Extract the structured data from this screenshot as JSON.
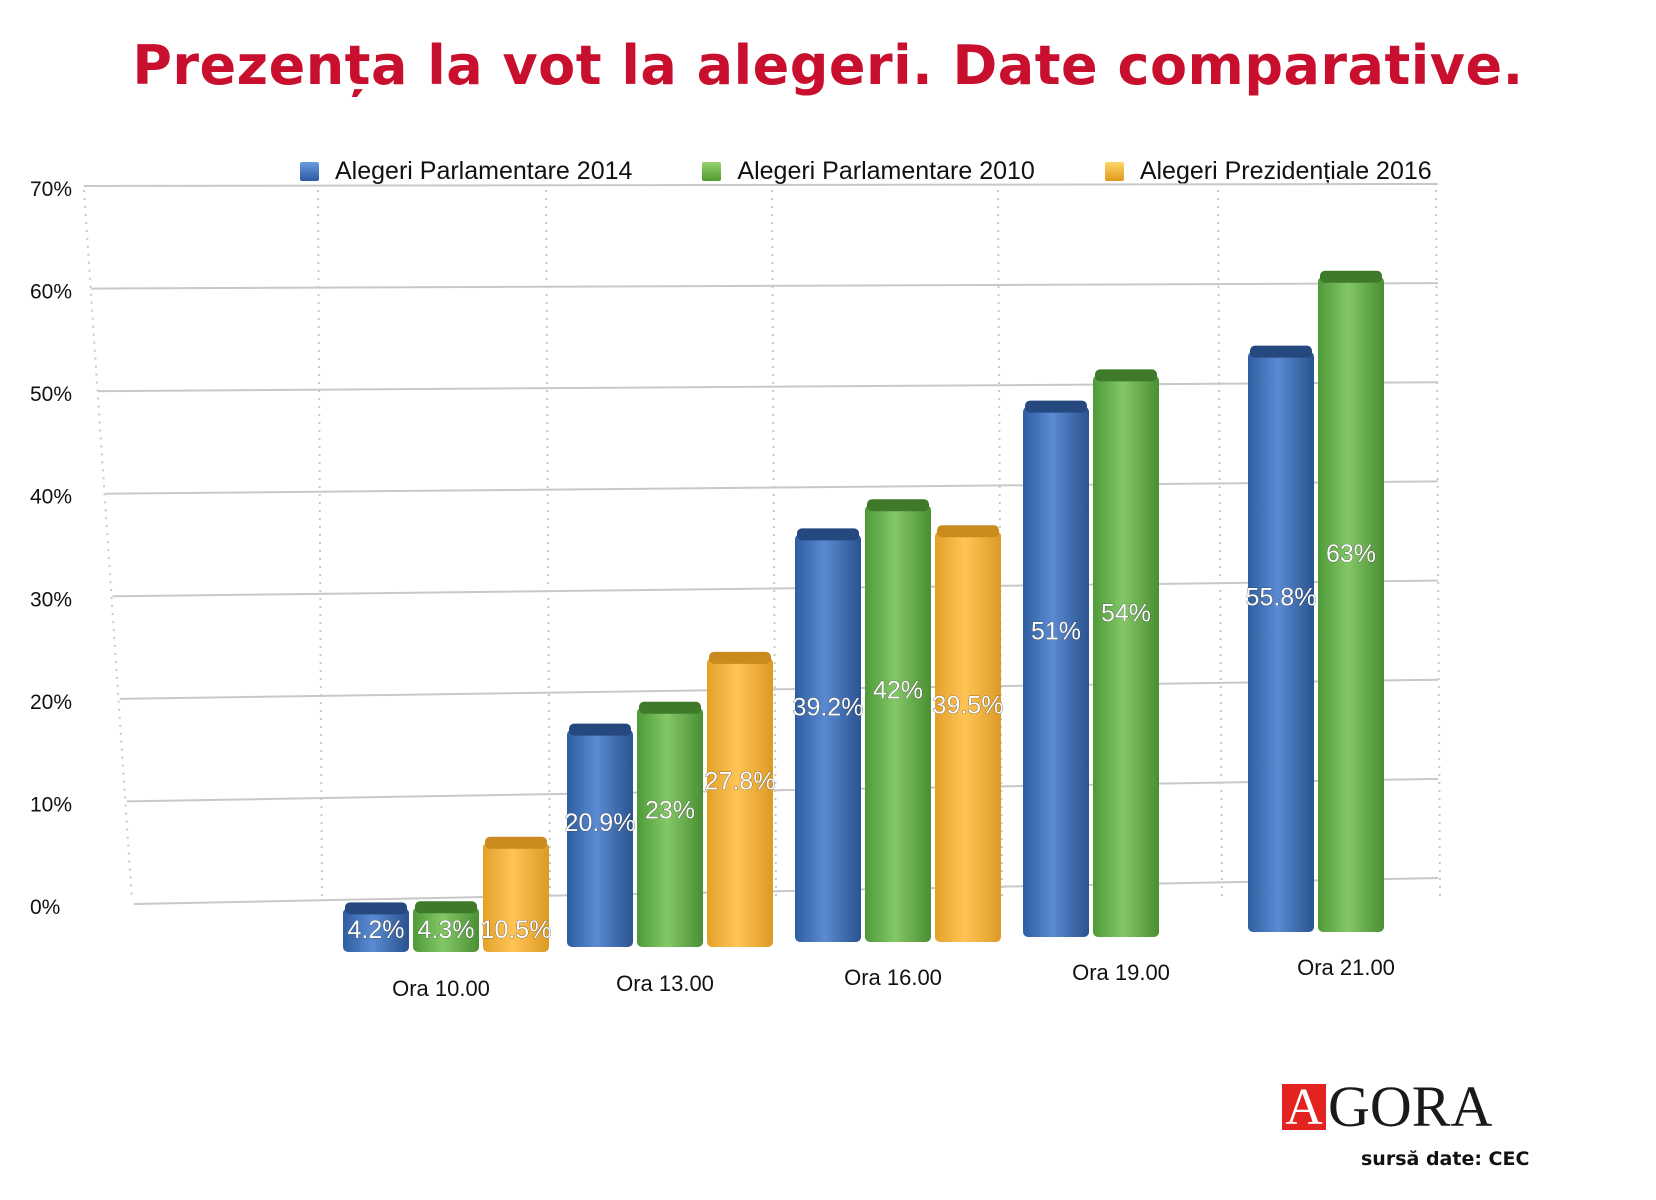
{
  "chart_data": {
    "type": "bar",
    "title": "Prezența la vot la alegeri. Date comparative.",
    "xlabel": "",
    "ylabel": "",
    "ylim": [
      0,
      70
    ],
    "yticks": [
      "0%",
      "10%",
      "20%",
      "30%",
      "40%",
      "50%",
      "60%",
      "70%"
    ],
    "grid": true,
    "legend_position": "top",
    "categories": [
      "Ora 10.00",
      "Ora 13.00",
      "Ora 16.00",
      "Ora 19.00",
      "Ora 21.00"
    ],
    "series": [
      {
        "name": "Alegeri Parlamentare 2014",
        "color": "#3f6fb8",
        "values": [
          4.2,
          20.9,
          39.2,
          51,
          55.8
        ],
        "labels": [
          "4.2%",
          "20.9%",
          "39.2%",
          "51%",
          "55.8%"
        ]
      },
      {
        "name": "Alegeri Parlamentare 2010",
        "color": "#6cb24a",
        "values": [
          4.3,
          23,
          42,
          54,
          63
        ],
        "labels": [
          "4.3%",
          "23%",
          "42%",
          "54%",
          "63%"
        ]
      },
      {
        "name": "Alegeri Prezidențiale 2016",
        "color": "#f4b339",
        "values": [
          10.5,
          27.8,
          39.5,
          null,
          null
        ],
        "labels": [
          "10.5%",
          "27.8%",
          "39.5%",
          "",
          ""
        ]
      }
    ]
  },
  "footer": {
    "logo_initial": "A",
    "logo_rest": "GORA",
    "source": "sursă date: CEC"
  }
}
